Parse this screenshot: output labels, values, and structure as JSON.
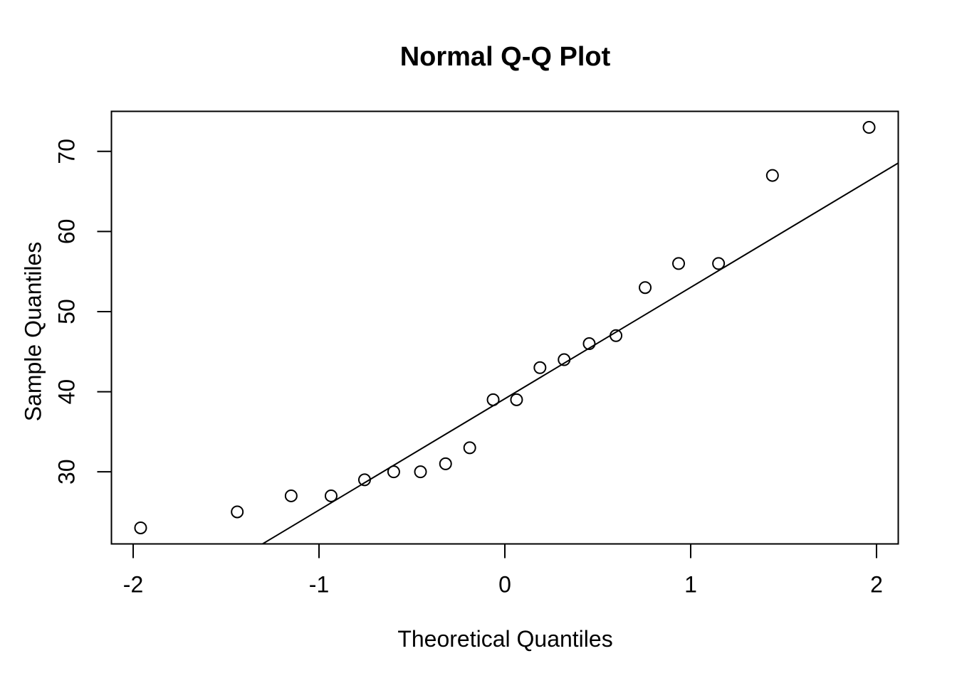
{
  "figure": {
    "title": "Normal Q-Q Plot",
    "xlabel": "Theoretical Quantiles",
    "ylabel": "Sample Quantiles"
  },
  "chart_data": {
    "type": "scatter",
    "subtype": "normal-qq-plot",
    "title": "Normal Q-Q Plot",
    "xlabel": "Theoretical Quantiles",
    "ylabel": "Sample Quantiles",
    "x_ticks": [
      -2,
      -1,
      0,
      1,
      2
    ],
    "y_ticks": [
      30,
      40,
      50,
      60,
      70
    ],
    "xlim": [
      -2.117,
      2.117
    ],
    "ylim": [
      21,
      75
    ],
    "points": {
      "theoretical_quantiles": [
        -1.96,
        -1.44,
        -1.15,
        -0.935,
        -0.755,
        -0.598,
        -0.454,
        -0.319,
        -0.189,
        -0.063,
        0.063,
        0.189,
        0.319,
        0.454,
        0.598,
        0.755,
        0.935,
        1.15,
        1.44,
        1.96
      ],
      "sample_quantiles": [
        23,
        25,
        27,
        27,
        29,
        30,
        30,
        31,
        33,
        39,
        39,
        43,
        44,
        46,
        47,
        53,
        56,
        56,
        67,
        73
      ]
    },
    "qq_line": {
      "intercept": 39.125,
      "slope": 13.9
    },
    "marker": "open-circle",
    "marker_radius_px": 8,
    "stroke_color": "#000000",
    "background": "#ffffff",
    "grid": false,
    "legend": null
  }
}
